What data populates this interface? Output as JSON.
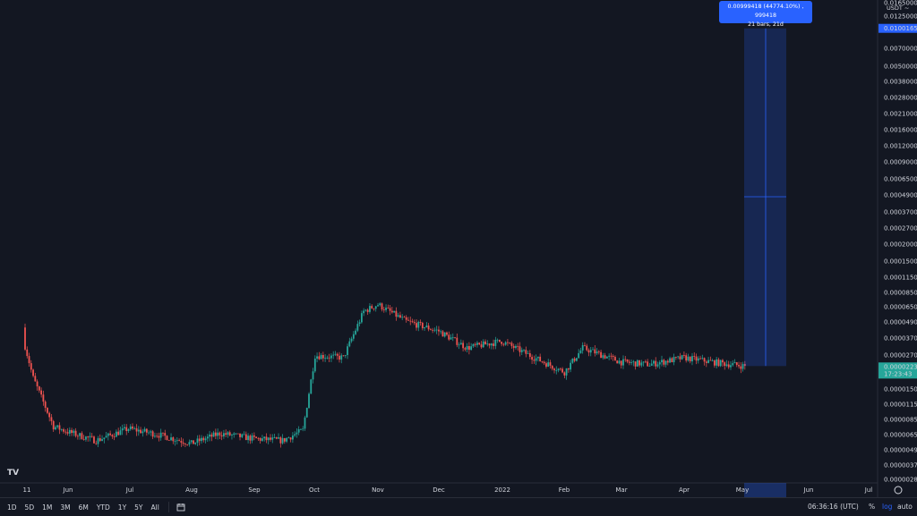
{
  "chart_data": {
    "type": "candlestick",
    "currency_label": "USDT ~",
    "scale": "log",
    "time_labels": [
      "11",
      "Jun",
      "Jul",
      "Aug",
      "Sep",
      "Oct",
      "Nov",
      "Dec",
      "2022",
      "Feb",
      "Mar",
      "Apr",
      "May",
      "Jun",
      "Jul"
    ],
    "price_ticks": [
      "0.01650000",
      "0.01250000",
      "0.00700000",
      "0.00500000",
      "0.00380000",
      "0.00280000",
      "0.00210000",
      "0.00160000",
      "0.00120000",
      "0.00090000",
      "0.00065000",
      "0.00049000",
      "0.00037000",
      "0.00027000",
      "0.00020000",
      "0.00015000",
      "0.00011500",
      "0.00008500",
      "0.00006500",
      "0.00004900",
      "0.00003700",
      "0.00002700",
      "0.00001500",
      "0.00001150",
      "0.00000850",
      "0.00000650",
      "0.00000490",
      "0.00000370",
      "0.00000285"
    ],
    "current_price": "0.00002232",
    "countdown": "17:23:43",
    "measure_top_price": "0.01001650",
    "measure": {
      "line1": "0.00999418 (44774.10%) , 999418",
      "line2": "21 bars, 21d"
    },
    "colors": {
      "up": "#26a69a",
      "down": "#ef5350",
      "measure": "#2962ff"
    },
    "approx_close_path": [
      [
        "2021-05-11",
        3.2e-05
      ],
      [
        "2021-05-15",
        1.8e-05
      ],
      [
        "2021-05-25",
        7.5e-06
      ],
      [
        "2021-06-01",
        6.8e-06
      ],
      [
        "2021-06-15",
        5.8e-06
      ],
      [
        "2021-07-01",
        7.2e-06
      ],
      [
        "2021-07-15",
        6.5e-06
      ],
      [
        "2021-08-01",
        5.5e-06
      ],
      [
        "2021-08-15",
        6.6e-06
      ],
      [
        "2021-09-01",
        6e-06
      ],
      [
        "2021-09-15",
        5.8e-06
      ],
      [
        "2021-09-25",
        7e-06
      ],
      [
        "2021-10-01",
        2.7e-05
      ],
      [
        "2021-10-15",
        2.6e-05
      ],
      [
        "2021-10-25",
        6e-05
      ],
      [
        "2021-11-01",
        6.8e-05
      ],
      [
        "2021-11-15",
        5e-05
      ],
      [
        "2021-12-01",
        4.2e-05
      ],
      [
        "2021-12-15",
        3.1e-05
      ],
      [
        "2022-01-01",
        3.5e-05
      ],
      [
        "2022-01-15",
        2.7e-05
      ],
      [
        "2022-02-01",
        2e-05
      ],
      [
        "2022-02-10",
        3.1e-05
      ],
      [
        "2022-03-01",
        2.4e-05
      ],
      [
        "2022-03-15",
        2.3e-05
      ],
      [
        "2022-04-01",
        2.6e-05
      ],
      [
        "2022-04-15",
        2.4e-05
      ],
      [
        "2022-05-01",
        2.23e-05
      ]
    ]
  },
  "toolbar": {
    "ranges": [
      "1D",
      "5D",
      "1M",
      "3M",
      "6M",
      "YTD",
      "1Y",
      "5Y",
      "All"
    ],
    "clock": "06:36:16 (UTC)",
    "percent": "%",
    "log": "log",
    "auto": "auto"
  }
}
